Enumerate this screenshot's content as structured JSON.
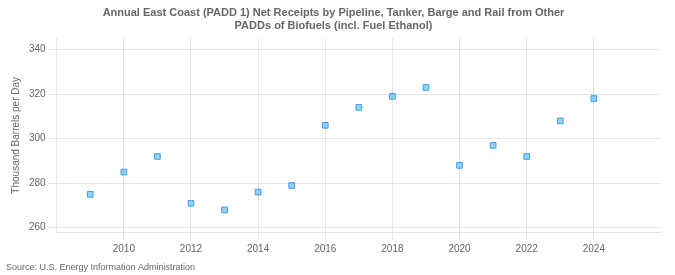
{
  "chart_data": {
    "type": "scatter",
    "title": "Annual East Coast (PADD 1) Net Receipts by Pipeline, Tanker, Barge and Rail from Other\nPADDs of Biofuels (incl. Fuel Ethanol)",
    "ylabel": "Thousand Barrels per Day",
    "annotation": "Source: U.S. Energy Information Administration",
    "x": [
      2009,
      2010,
      2011,
      2012,
      2013,
      2014,
      2015,
      2016,
      2017,
      2018,
      2019,
      2020,
      2021,
      2022,
      2023,
      2024
    ],
    "values": [
      275,
      285,
      292,
      271,
      268,
      276,
      279,
      306,
      314,
      319,
      323,
      288,
      297,
      292,
      308,
      318
    ],
    "marker": "square",
    "xlim": [
      2008,
      2026
    ],
    "xticks": [
      2010,
      2012,
      2014,
      2016,
      2018,
      2020,
      2022,
      2024
    ],
    "ylim": [
      258,
      345
    ],
    "yticks": [
      260,
      280,
      300,
      320,
      340
    ],
    "grid": true
  }
}
